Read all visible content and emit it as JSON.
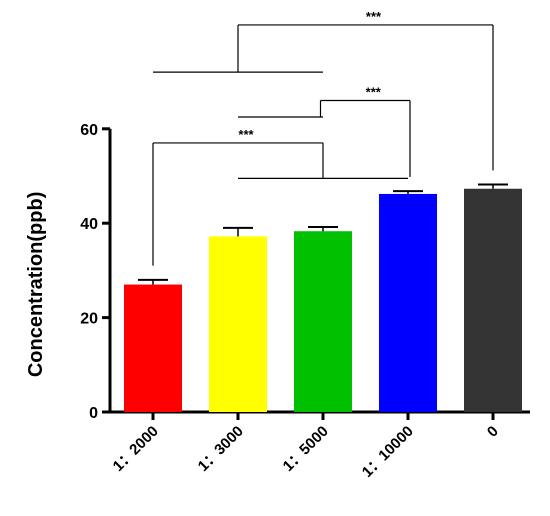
{
  "chart_data": {
    "type": "bar",
    "title": "",
    "xlabel": "",
    "ylabel": "Concentration(ppb)",
    "ylim": [
      0,
      60
    ],
    "yticks": [
      0,
      20,
      40,
      60
    ],
    "grid": false,
    "legend": "none",
    "categories": [
      "1：2000",
      "1：3000",
      "1：5000",
      "1：10000",
      "0"
    ],
    "values": [
      27,
      37.2,
      38.3,
      46.2,
      47.3
    ],
    "errors": [
      1.0,
      1.8,
      0.9,
      0.6,
      0.9
    ],
    "colors": [
      "#ff0000",
      "#ffff00",
      "#00c000",
      "#0000ff",
      "#333333"
    ],
    "significance": [
      {
        "label": "***",
        "from": "1：2000",
        "to": "1：3000, 1：5000, 1：10000",
        "level": 57
      },
      {
        "label": "***",
        "from": "1：3000, 1：5000",
        "to": "1：10000",
        "level": 66
      },
      {
        "label": "***",
        "from": "1：2000, 1：3000, 1：5000",
        "to": "0",
        "level": 82
      }
    ]
  }
}
